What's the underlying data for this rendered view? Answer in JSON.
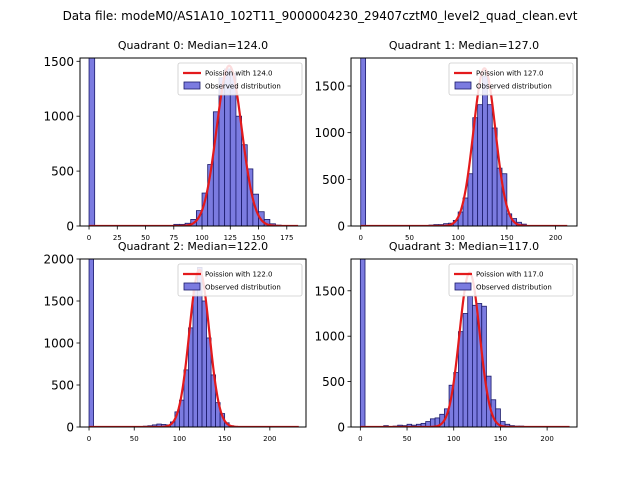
{
  "figure_title": "Data file: modeM0/AS1A10_102T11_9000004230_29407cztM0_level2_quad_clean.evt",
  "colors": {
    "bar_fill": "#7b7be0",
    "bar_edge": "#1a1a6a",
    "fit_line": "#e31a1c",
    "axis": "#000000"
  },
  "chart_data": [
    {
      "type": "bar",
      "title": "Quadrant 0: Median=124.0",
      "bin_width": 5,
      "xlim": [
        -8,
        192
      ],
      "ylim": [
        0,
        1530
      ],
      "xticks": [
        0,
        25,
        50,
        75,
        100,
        125,
        150,
        175
      ],
      "yticks": [
        0,
        500,
        1000,
        1500
      ],
      "legend": {
        "placement": "top-right",
        "line_label": "Poission with 124.0",
        "bar_label": "Observed distribution"
      },
      "bars": [
        {
          "x": 0,
          "value": 1530
        },
        {
          "x": 75,
          "value": 15
        },
        {
          "x": 80,
          "value": 15
        },
        {
          "x": 85,
          "value": 25
        },
        {
          "x": 90,
          "value": 60
        },
        {
          "x": 95,
          "value": 140
        },
        {
          "x": 100,
          "value": 300
        },
        {
          "x": 105,
          "value": 560
        },
        {
          "x": 110,
          "value": 1040
        },
        {
          "x": 115,
          "value": 1350
        },
        {
          "x": 120,
          "value": 1430
        },
        {
          "x": 125,
          "value": 1390
        },
        {
          "x": 130,
          "value": 1000
        },
        {
          "x": 135,
          "value": 740
        },
        {
          "x": 140,
          "value": 520
        },
        {
          "x": 145,
          "value": 290
        },
        {
          "x": 150,
          "value": 130
        },
        {
          "x": 155,
          "value": 60
        },
        {
          "x": 160,
          "value": 20
        },
        {
          "x": 165,
          "value": 8
        }
      ],
      "fit": {
        "label": "Poission with 124.0",
        "mean": 124.0,
        "peak": 1460,
        "x_range": [
          0,
          185
        ]
      }
    },
    {
      "type": "bar",
      "title": "Quadrant 1: Median=127.0",
      "bin_width": 5,
      "xlim": [
        -10,
        222
      ],
      "ylim": [
        0,
        1800
      ],
      "xticks": [
        0,
        50,
        100,
        150,
        200
      ],
      "yticks": [
        0,
        500,
        1000,
        1500
      ],
      "legend": {
        "placement": "top-right",
        "line_label": "Poission with 127.0",
        "bar_label": "Observed distribution"
      },
      "bars": [
        {
          "x": 0,
          "value": 1800
        },
        {
          "x": 70,
          "value": 10
        },
        {
          "x": 75,
          "value": 15
        },
        {
          "x": 80,
          "value": 15
        },
        {
          "x": 85,
          "value": 25
        },
        {
          "x": 90,
          "value": 30
        },
        {
          "x": 95,
          "value": 60
        },
        {
          "x": 100,
          "value": 150
        },
        {
          "x": 105,
          "value": 300
        },
        {
          "x": 110,
          "value": 560
        },
        {
          "x": 115,
          "value": 1160
        },
        {
          "x": 120,
          "value": 1300
        },
        {
          "x": 125,
          "value": 1600
        },
        {
          "x": 130,
          "value": 1300
        },
        {
          "x": 135,
          "value": 1050
        },
        {
          "x": 140,
          "value": 620
        },
        {
          "x": 145,
          "value": 560
        },
        {
          "x": 150,
          "value": 130
        },
        {
          "x": 155,
          "value": 80
        },
        {
          "x": 160,
          "value": 40
        },
        {
          "x": 165,
          "value": 20
        }
      ],
      "fit": {
        "label": "Poission with 127.0",
        "mean": 127.0,
        "peak": 1690,
        "x_range": [
          0,
          212
        ]
      }
    },
    {
      "type": "bar",
      "title": "Quadrant 2: Median=122.0",
      "bin_width": 5,
      "xlim": [
        -10,
        240
      ],
      "ylim": [
        0,
        2000
      ],
      "xticks": [
        0,
        50,
        100,
        150,
        200
      ],
      "yticks": [
        0,
        500,
        1000,
        1500,
        2000
      ],
      "legend": {
        "placement": "top-right",
        "line_label": "Poission with 122.0",
        "bar_label": "Observed distribution"
      },
      "bars": [
        {
          "x": 0,
          "value": 2000
        },
        {
          "x": 60,
          "value": 10
        },
        {
          "x": 65,
          "value": 15
        },
        {
          "x": 70,
          "value": 25
        },
        {
          "x": 75,
          "value": 35
        },
        {
          "x": 80,
          "value": 30
        },
        {
          "x": 85,
          "value": 25
        },
        {
          "x": 90,
          "value": 60
        },
        {
          "x": 95,
          "value": 180
        },
        {
          "x": 100,
          "value": 320
        },
        {
          "x": 105,
          "value": 680
        },
        {
          "x": 110,
          "value": 1180
        },
        {
          "x": 115,
          "value": 1680
        },
        {
          "x": 120,
          "value": 1900
        },
        {
          "x": 125,
          "value": 1500
        },
        {
          "x": 130,
          "value": 1060
        },
        {
          "x": 135,
          "value": 620
        },
        {
          "x": 140,
          "value": 290
        },
        {
          "x": 145,
          "value": 160
        },
        {
          "x": 150,
          "value": 50
        },
        {
          "x": 155,
          "value": 15
        }
      ],
      "fit": {
        "label": "Poission with 122.0",
        "mean": 122.0,
        "peak": 1870,
        "x_range": [
          0,
          232
        ]
      }
    },
    {
      "type": "bar",
      "title": "Quadrant 3: Median=117.0",
      "bin_width": 5,
      "xlim": [
        -10,
        232
      ],
      "ylim": [
        0,
        1850
      ],
      "xticks": [
        0,
        50,
        100,
        150,
        200
      ],
      "yticks": [
        0,
        500,
        1000,
        1500
      ],
      "legend": {
        "placement": "top-right",
        "line_label": "Poission with 117.0",
        "bar_label": "Observed distribution"
      },
      "bars": [
        {
          "x": 0,
          "value": 1850
        },
        {
          "x": 25,
          "value": 15
        },
        {
          "x": 35,
          "value": 10
        },
        {
          "x": 40,
          "value": 20
        },
        {
          "x": 45,
          "value": 15
        },
        {
          "x": 50,
          "value": 30
        },
        {
          "x": 55,
          "value": 20
        },
        {
          "x": 60,
          "value": 30
        },
        {
          "x": 65,
          "value": 40
        },
        {
          "x": 70,
          "value": 60
        },
        {
          "x": 75,
          "value": 90
        },
        {
          "x": 80,
          "value": 100
        },
        {
          "x": 85,
          "value": 140
        },
        {
          "x": 90,
          "value": 200
        },
        {
          "x": 95,
          "value": 460
        },
        {
          "x": 100,
          "value": 600
        },
        {
          "x": 105,
          "value": 1050
        },
        {
          "x": 110,
          "value": 1250
        },
        {
          "x": 115,
          "value": 1440
        },
        {
          "x": 120,
          "value": 1340
        },
        {
          "x": 125,
          "value": 1360
        },
        {
          "x": 130,
          "value": 1330
        },
        {
          "x": 135,
          "value": 560
        },
        {
          "x": 140,
          "value": 300
        },
        {
          "x": 145,
          "value": 200
        },
        {
          "x": 150,
          "value": 60
        },
        {
          "x": 155,
          "value": 30
        },
        {
          "x": 160,
          "value": 15
        },
        {
          "x": 165,
          "value": 10
        },
        {
          "x": 170,
          "value": 10
        }
      ],
      "fit": {
        "label": "Poission with 117.0",
        "mean": 117.0,
        "peak": 1700,
        "x_range": [
          0,
          224
        ]
      }
    }
  ]
}
